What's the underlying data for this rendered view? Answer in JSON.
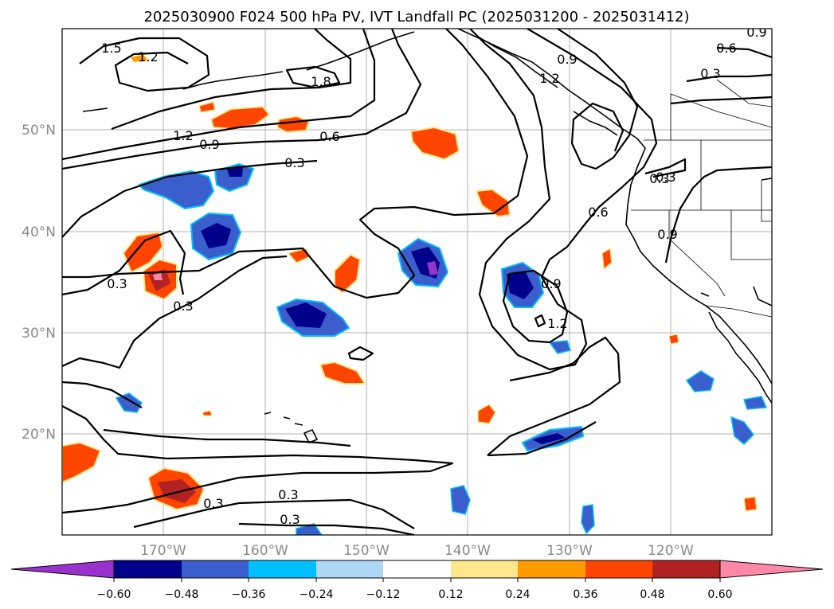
{
  "title": "2025030900 F024 500 hPa PV, IVT Landfall PC (2025031200 - 2025031412)",
  "map": {
    "lon_range": [
      -180,
      -110
    ],
    "lat_range": [
      10,
      60
    ],
    "lon_ticks": [
      "170°W",
      "160°W",
      "150°W",
      "140°W",
      "130°W",
      "120°W"
    ],
    "lat_ticks": [
      "20°N",
      "30°N",
      "40°N",
      "50°N"
    ],
    "grid": true
  },
  "contours": {
    "labels": [
      "1.5",
      "1.2",
      "1.8",
      "1.2",
      "0.9",
      "0.6",
      "0.3",
      "0.3",
      "0.3",
      "0.3",
      "0.3",
      "0.3",
      "0.9",
      "0.6",
      "0.3",
      "0.9",
      "1.2",
      "0.6",
      "0.3",
      "0.9",
      "0.9",
      "0.3",
      "1.2"
    ]
  },
  "colorbar": {
    "ticks": [
      "−0.60",
      "−0.48",
      "−0.36",
      "−0.24",
      "−0.12",
      "0.12",
      "0.24",
      "0.36",
      "0.48",
      "0.60"
    ],
    "colors": [
      "#9932cc",
      "#00008b",
      "#3a5fcd",
      "#00bfff",
      "#add8f5",
      "#ffffff",
      "#fce78c",
      "#ff9a00",
      "#ff4500",
      "#b22222",
      "#ff88a8"
    ],
    "extend": "both"
  }
}
